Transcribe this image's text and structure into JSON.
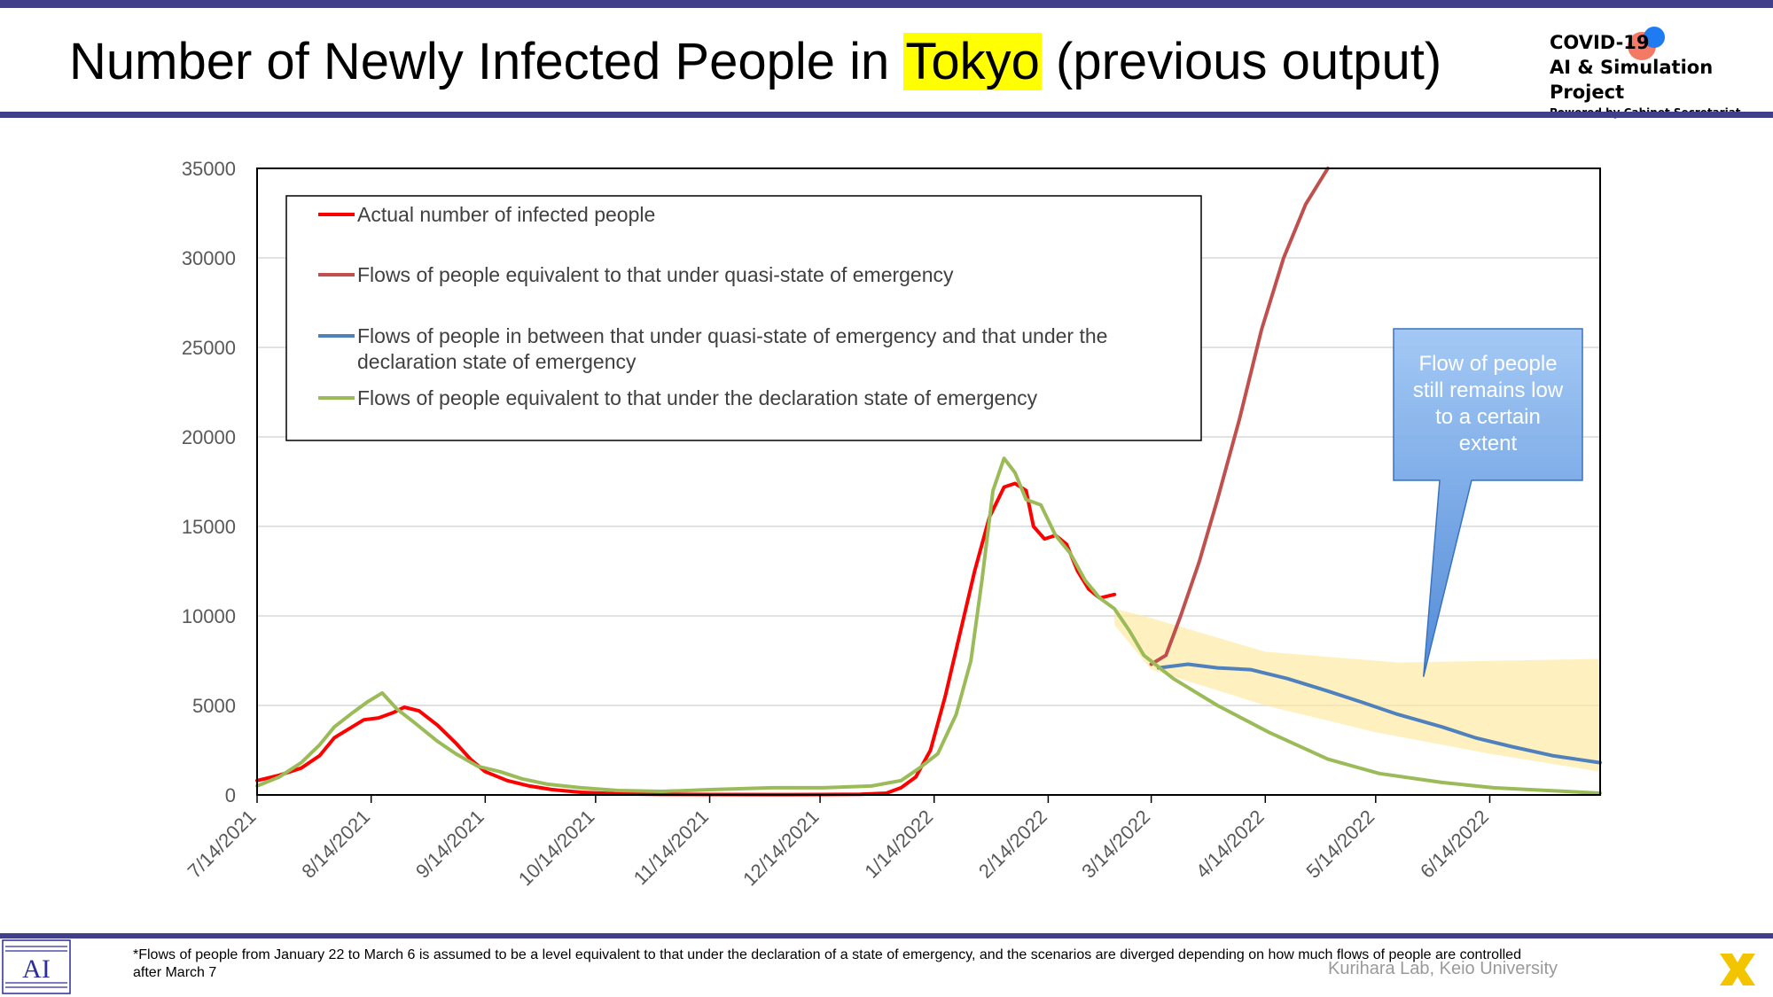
{
  "header": {
    "title_before": "Number of Newly Infected People in ",
    "title_highlight": "Tokyo",
    "title_after": " (previous output)",
    "logo_line1": "COVID-19",
    "logo_line2": "AI & Simulation Project",
    "logo_line3": "Powered by Cabinet Secretariat"
  },
  "footer": {
    "note": "*Flows of people from January 22 to March 6 is assumed to be a level equivalent to that under the declaration of a state of emergency, and the scenarios are diverged depending on how much flows of people are controlled after March 7",
    "credit": "Kurihara Lab, Keio University"
  },
  "colors": {
    "accent_bar": "#3f3f8a",
    "highlight": "#ffff00",
    "actual": "#ff0000",
    "quasi": "#c0504d",
    "between": "#4f81bd",
    "declaration": "#9bbb59",
    "band": "#ffe699",
    "callout": "#6fa8e8"
  },
  "icons": [
    "kurihara-lab-logo-icon",
    "covid-project-logo-icon",
    "x-mark-icon"
  ],
  "chart_data": {
    "type": "line",
    "x_axis_type": "date",
    "xlim": [
      "2021-07-14",
      "2022-07-14"
    ],
    "ylim": [
      0,
      35000
    ],
    "yticks": [
      0,
      5000,
      10000,
      15000,
      20000,
      25000,
      30000,
      35000
    ],
    "ytick_labels": [
      "0",
      "5000",
      "10000",
      "15000",
      "20000",
      "25000",
      "30000",
      "35000"
    ],
    "xticks": [
      "2021-07-14",
      "2021-08-14",
      "2021-09-14",
      "2021-10-14",
      "2021-11-14",
      "2021-12-14",
      "2022-01-14",
      "2022-02-14",
      "2022-03-14",
      "2022-04-14",
      "2022-05-14",
      "2022-06-14"
    ],
    "xtick_labels": [
      "7/14/2021",
      "8/14/2021",
      "9/14/2021",
      "10/14/2021",
      "11/14/2021",
      "12/14/2021",
      "1/14/2022",
      "2/14/2022",
      "3/14/2022",
      "4/14/2022",
      "5/14/2022",
      "6/14/2022"
    ],
    "grid": "horizontal",
    "legend_position": "top-left",
    "series": [
      {
        "name": "Actual number of infected people",
        "color": "#ff0000",
        "points": [
          [
            "2021-07-14",
            800
          ],
          [
            "2021-07-20",
            1100
          ],
          [
            "2021-07-26",
            1500
          ],
          [
            "2021-07-31",
            2200
          ],
          [
            "2021-08-04",
            3200
          ],
          [
            "2021-08-08",
            3700
          ],
          [
            "2021-08-12",
            4200
          ],
          [
            "2021-08-16",
            4300
          ],
          [
            "2021-08-20",
            4600
          ],
          [
            "2021-08-23",
            4900
          ],
          [
            "2021-08-27",
            4700
          ],
          [
            "2021-09-01",
            3900
          ],
          [
            "2021-09-06",
            2900
          ],
          [
            "2021-09-10",
            2000
          ],
          [
            "2021-09-14",
            1300
          ],
          [
            "2021-09-20",
            800
          ],
          [
            "2021-09-26",
            500
          ],
          [
            "2021-10-02",
            300
          ],
          [
            "2021-10-10",
            150
          ],
          [
            "2021-10-20",
            60
          ],
          [
            "2021-11-01",
            30
          ],
          [
            "2021-11-15",
            25
          ],
          [
            "2021-12-01",
            20
          ],
          [
            "2021-12-15",
            25
          ],
          [
            "2021-12-25",
            40
          ],
          [
            "2022-01-01",
            100
          ],
          [
            "2022-01-05",
            400
          ],
          [
            "2022-01-09",
            1000
          ],
          [
            "2022-01-13",
            2500
          ],
          [
            "2022-01-17",
            5500
          ],
          [
            "2022-01-21",
            9000
          ],
          [
            "2022-01-25",
            12500
          ],
          [
            "2022-01-29",
            15500
          ],
          [
            "2022-02-02",
            17200
          ],
          [
            "2022-02-05",
            17400
          ],
          [
            "2022-02-08",
            17000
          ],
          [
            "2022-02-10",
            15000
          ],
          [
            "2022-02-13",
            14300
          ],
          [
            "2022-02-16",
            14500
          ],
          [
            "2022-02-19",
            14000
          ],
          [
            "2022-02-22",
            12500
          ],
          [
            "2022-02-25",
            11500
          ],
          [
            "2022-02-28",
            11000
          ],
          [
            "2022-03-04",
            11200
          ]
        ]
      },
      {
        "name": "Flows of people equivalent to that under quasi-state of emergency",
        "color": "#c0504d",
        "points": [
          [
            "2022-03-14",
            7300
          ],
          [
            "2022-03-18",
            7800
          ],
          [
            "2022-03-22",
            10000
          ],
          [
            "2022-03-27",
            13000
          ],
          [
            "2022-04-01",
            16500
          ],
          [
            "2022-04-07",
            21000
          ],
          [
            "2022-04-13",
            26000
          ],
          [
            "2022-04-19",
            30000
          ],
          [
            "2022-04-25",
            33000
          ],
          [
            "2022-05-01",
            35000
          ]
        ]
      },
      {
        "name": "Flows of people in between that under quasi-state of emergency and that under the declaration state of emergency",
        "color": "#4f81bd",
        "points": [
          [
            "2022-03-16",
            7100
          ],
          [
            "2022-03-24",
            7300
          ],
          [
            "2022-04-01",
            7100
          ],
          [
            "2022-04-10",
            7000
          ],
          [
            "2022-04-20",
            6500
          ],
          [
            "2022-05-01",
            5800
          ],
          [
            "2022-05-10",
            5200
          ],
          [
            "2022-05-20",
            4500
          ],
          [
            "2022-06-01",
            3800
          ],
          [
            "2022-06-10",
            3200
          ],
          [
            "2022-06-20",
            2700
          ],
          [
            "2022-07-01",
            2200
          ],
          [
            "2022-07-14",
            1800
          ]
        ]
      },
      {
        "name": "Flows of people equivalent to that under the declaration state of emergency",
        "color": "#9bbb59",
        "points": [
          [
            "2021-07-14",
            500
          ],
          [
            "2021-07-20",
            1000
          ],
          [
            "2021-07-26",
            1800
          ],
          [
            "2021-07-31",
            2800
          ],
          [
            "2021-08-04",
            3800
          ],
          [
            "2021-08-09",
            4600
          ],
          [
            "2021-08-13",
            5200
          ],
          [
            "2021-08-17",
            5700
          ],
          [
            "2021-08-21",
            4800
          ],
          [
            "2021-08-26",
            4000
          ],
          [
            "2021-09-01",
            3000
          ],
          [
            "2021-09-06",
            2300
          ],
          [
            "2021-09-12",
            1600
          ],
          [
            "2021-09-18",
            1300
          ],
          [
            "2021-09-24",
            900
          ],
          [
            "2021-10-01",
            600
          ],
          [
            "2021-10-10",
            400
          ],
          [
            "2021-10-20",
            250
          ],
          [
            "2021-11-01",
            200
          ],
          [
            "2021-11-15",
            300
          ],
          [
            "2021-12-01",
            400
          ],
          [
            "2021-12-15",
            400
          ],
          [
            "2021-12-28",
            500
          ],
          [
            "2022-01-05",
            800
          ],
          [
            "2022-01-10",
            1500
          ],
          [
            "2022-01-15",
            2300
          ],
          [
            "2022-01-20",
            4500
          ],
          [
            "2022-01-24",
            7500
          ],
          [
            "2022-01-27",
            12000
          ],
          [
            "2022-01-30",
            17000
          ],
          [
            "2022-02-02",
            18800
          ],
          [
            "2022-02-05",
            18000
          ],
          [
            "2022-02-08",
            16500
          ],
          [
            "2022-02-12",
            16200
          ],
          [
            "2022-02-16",
            14500
          ],
          [
            "2022-02-20",
            13500
          ],
          [
            "2022-02-24",
            12000
          ],
          [
            "2022-02-28",
            11000
          ],
          [
            "2022-03-04",
            10400
          ],
          [
            "2022-03-08",
            9200
          ],
          [
            "2022-03-12",
            7800
          ],
          [
            "2022-03-20",
            6500
          ],
          [
            "2022-04-01",
            5000
          ],
          [
            "2022-04-15",
            3500
          ],
          [
            "2022-05-01",
            2000
          ],
          [
            "2022-05-15",
            1200
          ],
          [
            "2022-06-01",
            700
          ],
          [
            "2022-06-15",
            400
          ],
          [
            "2022-07-14",
            100
          ]
        ]
      }
    ],
    "band": {
      "upper": [
        [
          "2022-03-04",
          10400
        ],
        [
          "2022-03-12",
          10000
        ],
        [
          "2022-04-14",
          8000
        ],
        [
          "2022-05-20",
          7400
        ],
        [
          "2022-07-14",
          7600
        ]
      ],
      "lower": [
        [
          "2022-03-04",
          9500
        ],
        [
          "2022-03-14",
          7000
        ],
        [
          "2022-04-14",
          5000
        ],
        [
          "2022-05-14",
          3500
        ],
        [
          "2022-06-14",
          2300
        ],
        [
          "2022-07-14",
          1300
        ]
      ]
    },
    "callout": {
      "text": "Flow of people still remains low to a certain extent",
      "pointer": [
        "2022-05-27",
        6600
      ]
    }
  }
}
